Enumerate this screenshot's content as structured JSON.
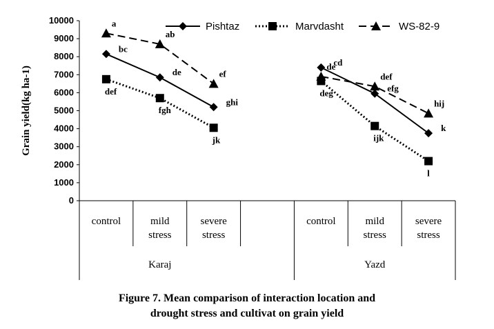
{
  "chart_data": {
    "type": "line",
    "ylabel": "Grain yield(kg ha-1)",
    "ylim": [
      0,
      10000
    ],
    "yticks": [
      0,
      1000,
      2000,
      3000,
      4000,
      5000,
      6000,
      7000,
      8000,
      9000,
      10000
    ],
    "groups": [
      {
        "name": "Karaj",
        "categories": [
          "control",
          "mild stress",
          "severe stress",
          ""
        ]
      },
      {
        "name": "Yazd",
        "categories": [
          "control",
          "mild stress",
          "severe stress"
        ]
      }
    ],
    "series": [
      {
        "name": "Pishtaz",
        "marker": "diamond",
        "line": "solid",
        "values": [
          [
            8150,
            6850,
            5200
          ],
          [
            7400,
            5950,
            3750
          ]
        ],
        "labels": [
          [
            "bc",
            "de",
            "ghi"
          ],
          [
            "cd",
            "efg",
            "k"
          ]
        ]
      },
      {
        "name": "Marvdasht",
        "marker": "square",
        "line": "dotted",
        "values": [
          [
            6750,
            5700,
            4050
          ],
          [
            6650,
            4150,
            2200
          ]
        ],
        "labels": [
          [
            "def",
            "fgh",
            "jk"
          ],
          [
            "deg",
            "ijk",
            "l"
          ]
        ]
      },
      {
        "name": "WS-82-9",
        "marker": "triangle",
        "line": "dashed",
        "values": [
          [
            9300,
            8700,
            6500
          ],
          [
            6900,
            6350,
            4850
          ]
        ],
        "labels": [
          [
            "a",
            "ab",
            "ef"
          ],
          [
            "de",
            "def",
            "hij"
          ]
        ]
      }
    ],
    "legend_position": "top"
  },
  "caption": {
    "line1": "Figure 7. Mean comparison of interaction location and",
    "line2": "drought stress and cultivat on grain yield"
  }
}
